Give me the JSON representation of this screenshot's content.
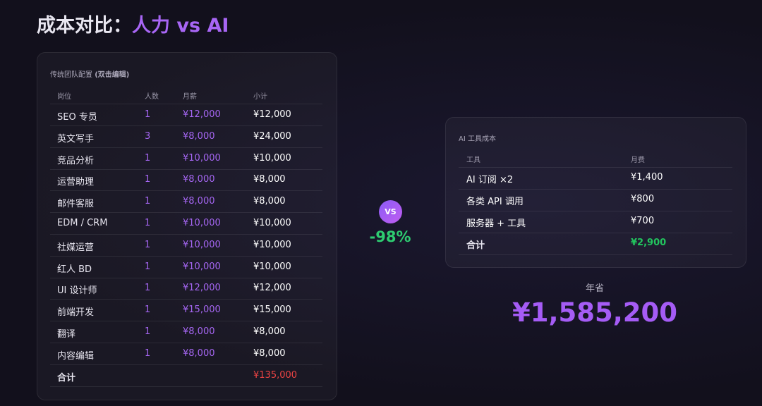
{
  "title": {
    "prefix": "成本对比：",
    "highlight": "人力 vs AI"
  },
  "team": {
    "heading": "传统团队配置",
    "hint": "(双击编辑)",
    "columns": [
      "岗位",
      "人数",
      "月薪",
      "小计"
    ],
    "rows": [
      [
        "SEO 专员",
        "1",
        "¥12,000",
        "¥12,000"
      ],
      [
        "英文写手",
        "3",
        "¥8,000",
        "¥24,000"
      ],
      [
        "竞品分析",
        "1",
        "¥10,000",
        "¥10,000"
      ],
      [
        "运营助理",
        "1",
        "¥8,000",
        "¥8,000"
      ],
      [
        "邮件客服",
        "1",
        "¥8,000",
        "¥8,000"
      ],
      [
        "EDM / CRM",
        "1",
        "¥10,000",
        "¥10,000"
      ],
      [
        "社媒运营",
        "1",
        "¥10,000",
        "¥10,000"
      ],
      [
        "红人 BD",
        "1",
        "¥10,000",
        "¥10,000"
      ],
      [
        "UI 设计师",
        "1",
        "¥12,000",
        "¥12,000"
      ],
      [
        "前端开发",
        "1",
        "¥15,000",
        "¥15,000"
      ],
      [
        "翻译",
        "1",
        "¥8,000",
        "¥8,000"
      ],
      [
        "内容编辑",
        "1",
        "¥8,000",
        "¥8,000"
      ]
    ],
    "total": {
      "label": "合计",
      "value": "¥135,000"
    }
  },
  "versus": {
    "badge": "VS",
    "change": "-98%"
  },
  "ai": {
    "heading": "AI 工具成本",
    "columns": [
      "工具",
      "月费"
    ],
    "rows": [
      [
        "AI 订阅 ×2",
        "¥1,400"
      ],
      [
        "各类 API 调用",
        "¥800"
      ],
      [
        "服务器 + 工具",
        "¥700"
      ]
    ],
    "total": {
      "label": "合计",
      "value": "¥2,900"
    }
  },
  "savings": {
    "label": "年省",
    "value": "¥1,585,200"
  }
}
